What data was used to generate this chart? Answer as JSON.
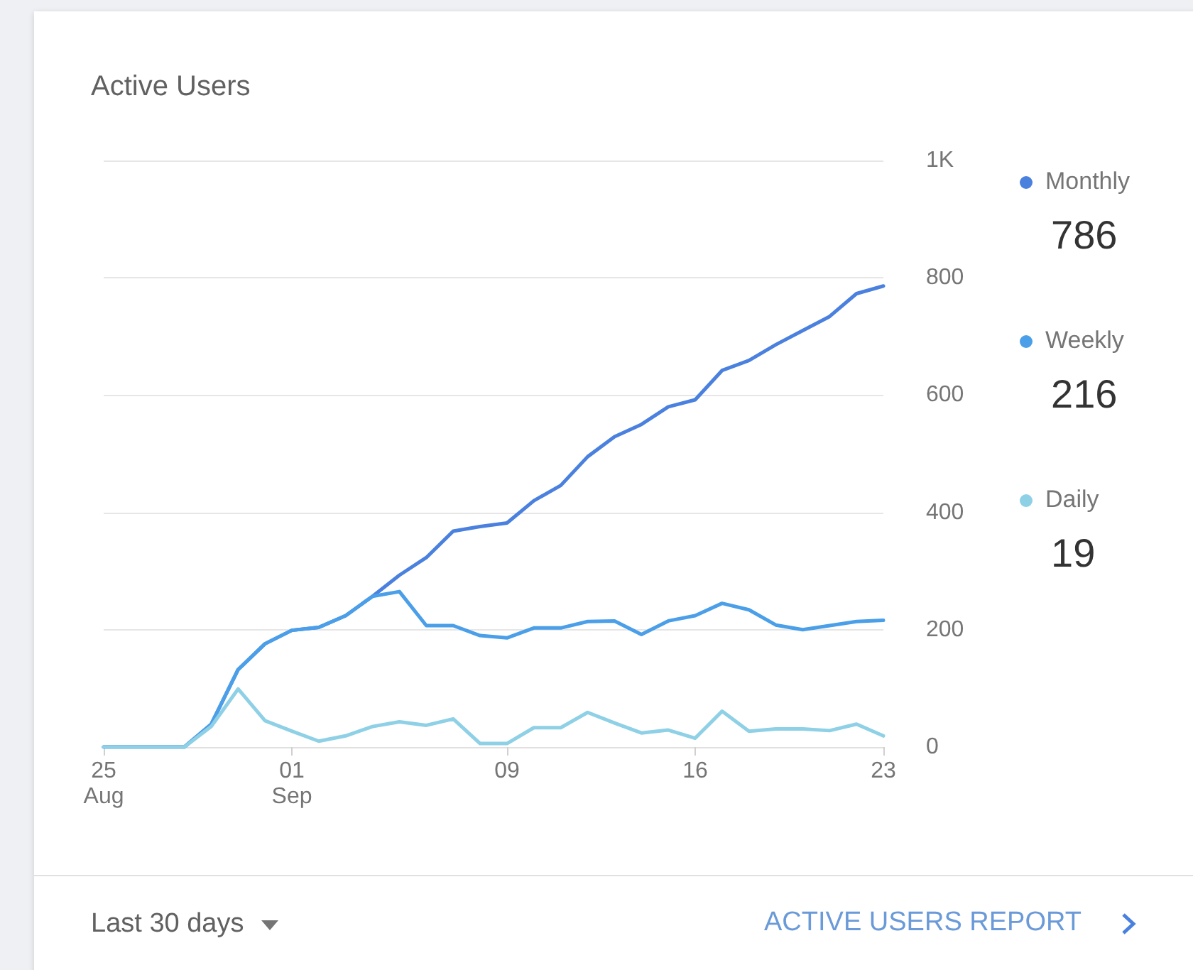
{
  "chart_data": {
    "type": "line",
    "title": "Active Users",
    "x": [
      "--08-25",
      "--08-26",
      "--08-27",
      "--08-28",
      "--08-29",
      "--08-30",
      "--08-31",
      "--09-01",
      "--09-02",
      "--09-03",
      "--09-04",
      "--09-05",
      "--09-06",
      "--09-07",
      "--09-08",
      "--09-09",
      "--09-10",
      "--09-11",
      "--09-12",
      "--09-13",
      "--09-14",
      "--09-15",
      "--09-16",
      "--09-17",
      "--09-18",
      "--09-19",
      "--09-20",
      "--09-21",
      "--09-22",
      "--09-23"
    ],
    "series": [
      {
        "name": "Monthly",
        "color": "#4a80de",
        "values": [
          0,
          0,
          0,
          0,
          39,
          132,
          176,
          199,
          204,
          224,
          257,
          293,
          323,
          368,
          376,
          382,
          420,
          446,
          495,
          529,
          550,
          580,
          592,
          642,
          659,
          686,
          710,
          734,
          773,
          786
        ]
      },
      {
        "name": "Weekly",
        "color": "#4a9fe8",
        "values": [
          0,
          0,
          0,
          0,
          39,
          132,
          176,
          199,
          204,
          224,
          257,
          265,
          207,
          207,
          190,
          186,
          203,
          203,
          214,
          215,
          192,
          215,
          224,
          245,
          234,
          208,
          200,
          207,
          214,
          216
        ]
      },
      {
        "name": "Daily",
        "color": "#8ed0e6",
        "values": [
          0,
          0,
          0,
          0,
          35,
          99,
          45,
          27,
          10,
          19,
          35,
          43,
          37,
          48,
          6,
          6,
          33,
          33,
          59,
          41,
          24,
          29,
          15,
          61,
          27,
          31,
          31,
          28,
          39,
          19
        ]
      }
    ],
    "xlim": [
      "--08-25",
      "--09-23"
    ],
    "xticks": [
      {
        "value": "--08-25",
        "label": "25\nAug"
      },
      {
        "value": "--09-01",
        "label": "01\nSep"
      },
      {
        "value": "--09-09",
        "label": "09"
      },
      {
        "value": "--09-16",
        "label": "16"
      },
      {
        "value": "--09-23",
        "label": "23"
      }
    ],
    "ylim": [
      0,
      1000
    ],
    "yticks": [
      0,
      200,
      400,
      600,
      800,
      {
        "value": 1000,
        "label": "1K"
      }
    ],
    "grid": "y",
    "legend": "right",
    "marker": "none",
    "line_style": "solid",
    "annotations": [
      "786",
      "216",
      "19",
      "Last 30 days",
      "ACTIVE USERS REPORT"
    ]
  }
}
